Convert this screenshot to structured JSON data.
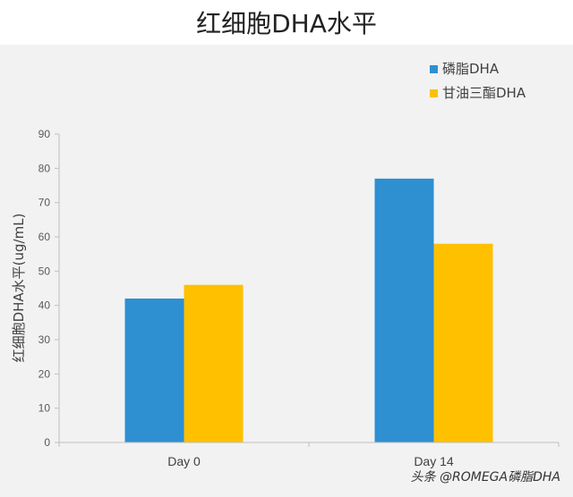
{
  "chart_data": {
    "type": "bar",
    "title": "红细胞DHA水平",
    "ylabel": "红细胞DHA水平(ug/mL)",
    "xlabel": "",
    "categories": [
      "Day 0",
      "Day 14"
    ],
    "series": [
      {
        "name": "磷脂DHA",
        "values": [
          42,
          77
        ],
        "color": "#2e8fd1"
      },
      {
        "name": "甘油三酯DHA",
        "values": [
          46,
          58
        ],
        "color": "#ffc000"
      }
    ],
    "ylim": [
      0,
      90
    ],
    "yticks": [
      0,
      10,
      20,
      30,
      40,
      50,
      60,
      70,
      80,
      90
    ],
    "grid": false,
    "legend_position": "top-right"
  },
  "watermark": "头条 @ROMEGA磷脂DHA"
}
